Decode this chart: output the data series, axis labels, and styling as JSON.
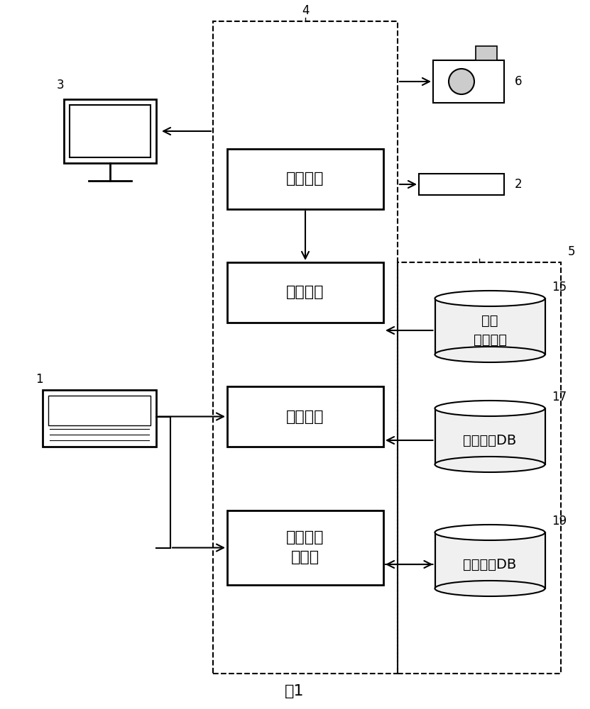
{
  "title": "图1",
  "bg_color": "#ffffff",
  "box4_label": "取出特征",
  "box_match_label": "特征匹配",
  "box_search_label": "实施检索",
  "box_manage_label": "图像文档\n的管理",
  "db15_label": "字形\n特征字典",
  "db17_label": "索引信息DB",
  "db19_label": "文档图像DB",
  "label_4": "4",
  "label_5": "5",
  "label_1": "1",
  "label_2": "2",
  "label_3": "3",
  "label_6": "6",
  "label_15": "15",
  "label_17": "17",
  "label_19": "19"
}
